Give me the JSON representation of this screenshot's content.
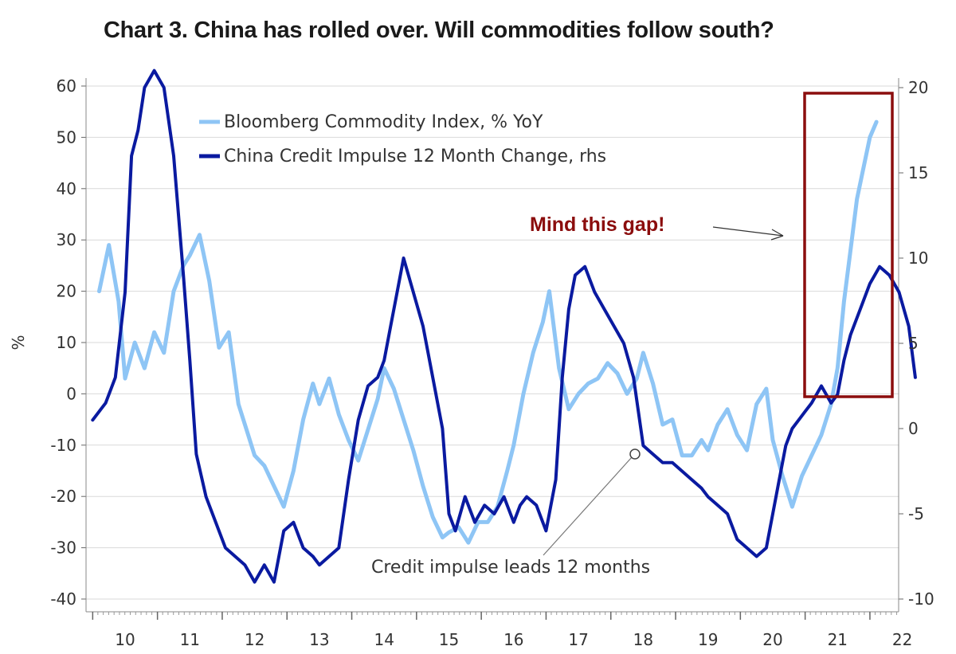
{
  "chart_data": {
    "type": "line",
    "title": "Chart 3. China has rolled over. Will commodities follow south?",
    "ylabel": "%",
    "y2label": "",
    "ylim": [
      -40,
      60
    ],
    "y2lim": [
      -10,
      20
    ],
    "yticks": [
      60,
      50,
      40,
      30,
      20,
      10,
      0,
      -10,
      -20,
      -30,
      -40
    ],
    "y2ticks": [
      20,
      15,
      10,
      5,
      0,
      -5,
      -10
    ],
    "xticks": [
      "10",
      "11",
      "12",
      "13",
      "14",
      "15",
      "16",
      "17",
      "18",
      "19",
      "20",
      "21",
      "22"
    ],
    "xlim": [
      2009.5,
      2022.3
    ],
    "grid": true,
    "legend_position": "top-left",
    "series": [
      {
        "name": "Bloomberg Commodity Index, % YoY",
        "axis": "left",
        "color": "#8ec5f5",
        "x": [
          2009.6,
          2009.75,
          2009.9,
          2010.0,
          2010.15,
          2010.3,
          2010.45,
          2010.6,
          2010.75,
          2010.9,
          2011.0,
          2011.15,
          2011.3,
          2011.45,
          2011.6,
          2011.75,
          2011.9,
          2012.0,
          2012.15,
          2012.3,
          2012.45,
          2012.6,
          2012.75,
          2012.9,
          2013.0,
          2013.15,
          2013.3,
          2013.45,
          2013.6,
          2013.75,
          2013.9,
          2014.0,
          2014.15,
          2014.3,
          2014.45,
          2014.6,
          2014.75,
          2014.9,
          2015.0,
          2015.15,
          2015.3,
          2015.45,
          2015.6,
          2015.75,
          2015.9,
          2016.0,
          2016.15,
          2016.3,
          2016.45,
          2016.55,
          2016.7,
          2016.85,
          2017.0,
          2017.15,
          2017.3,
          2017.45,
          2017.6,
          2017.75,
          2017.9,
          2018.0,
          2018.15,
          2018.3,
          2018.45,
          2018.6,
          2018.75,
          2018.9,
          2019.0,
          2019.15,
          2019.3,
          2019.45,
          2019.6,
          2019.75,
          2019.9,
          2020.0,
          2020.15,
          2020.3,
          2020.45,
          2020.6,
          2020.75,
          2020.9,
          2021.0,
          2021.1,
          2021.2,
          2021.3,
          2021.4,
          2021.5,
          2021.6
        ],
        "values": [
          20,
          29,
          18,
          3,
          10,
          5,
          12,
          8,
          20,
          25,
          27,
          31,
          22,
          9,
          12,
          -2,
          -8,
          -12,
          -14,
          -18,
          -22,
          -15,
          -5,
          2,
          -2,
          3,
          -4,
          -9,
          -13,
          -7,
          -1,
          5,
          1,
          -5,
          -11,
          -18,
          -24,
          -28,
          -27,
          -26,
          -29,
          -25,
          -25,
          -22,
          -15,
          -10,
          0,
          8,
          14,
          20,
          5,
          -3,
          0,
          2,
          3,
          6,
          4,
          0,
          3,
          8,
          2,
          -6,
          -5,
          -12,
          -12,
          -9,
          -11,
          -6,
          -3,
          -8,
          -11,
          -2,
          1,
          -9,
          -16,
          -22,
          -16,
          -12,
          -8,
          -2,
          5,
          18,
          28,
          38,
          44,
          50,
          53
        ]
      },
      {
        "name": "China Credit Impulse 12 Month Change, rhs",
        "axis": "right",
        "color": "#0a1aa0",
        "x": [
          2009.5,
          2009.7,
          2009.85,
          2010.0,
          2010.1,
          2010.2,
          2010.3,
          2010.45,
          2010.6,
          2010.75,
          2010.9,
          2011.0,
          2011.1,
          2011.25,
          2011.4,
          2011.55,
          2011.7,
          2011.85,
          2012.0,
          2012.15,
          2012.3,
          2012.45,
          2012.6,
          2012.75,
          2012.9,
          2013.0,
          2013.15,
          2013.3,
          2013.45,
          2013.6,
          2013.75,
          2013.9,
          2014.0,
          2014.1,
          2014.2,
          2014.3,
          2014.45,
          2014.6,
          2014.75,
          2014.9,
          2015.0,
          2015.1,
          2015.25,
          2015.4,
          2015.55,
          2015.7,
          2015.85,
          2016.0,
          2016.1,
          2016.2,
          2016.35,
          2016.5,
          2016.65,
          2016.75,
          2016.85,
          2016.95,
          2017.1,
          2017.25,
          2017.4,
          2017.55,
          2017.7,
          2017.85,
          2018.0,
          2018.15,
          2018.3,
          2018.45,
          2018.6,
          2018.75,
          2018.9,
          2019.0,
          2019.15,
          2019.3,
          2019.45,
          2019.6,
          2019.75,
          2019.9,
          2020.0,
          2020.1,
          2020.2,
          2020.3,
          2020.4,
          2020.5,
          2020.6,
          2020.75,
          2020.9,
          2021.0,
          2021.1,
          2021.2,
          2021.35,
          2021.5,
          2021.65,
          2021.8,
          2021.95,
          2022.1,
          2022.2
        ],
        "values": [
          0.5,
          1.5,
          3,
          8,
          16,
          17.5,
          20,
          21,
          20,
          16,
          9,
          4,
          -1.5,
          -4,
          -5.5,
          -7,
          -7.5,
          -8,
          -9,
          -8,
          -9,
          -6,
          -5.5,
          -7,
          -7.5,
          -8,
          -7.5,
          -7,
          -3,
          0.5,
          2.5,
          3,
          4,
          6,
          8,
          10,
          8,
          6,
          3,
          0,
          -5,
          -6,
          -4,
          -5.5,
          -4.5,
          -5,
          -4,
          -5.5,
          -4.5,
          -4,
          -4.5,
          -6,
          -3,
          3,
          7,
          9,
          9.5,
          8,
          7,
          6,
          5,
          3,
          -1,
          -1.5,
          -2,
          -2,
          -2.5,
          -3,
          -3.5,
          -4,
          -4.5,
          -5,
          -6.5,
          -7,
          -7.5,
          -7,
          -5,
          -3,
          -1,
          0,
          0.5,
          1,
          1.5,
          2.5,
          1.5,
          2,
          4,
          5.5,
          7,
          8.5,
          9.5,
          9,
          8,
          6,
          3
        ]
      }
    ],
    "annotations": [
      {
        "text": "Mind this gap!",
        "color": "#8b0d0d"
      },
      {
        "text": "Credit impulse leads 12 months"
      }
    ],
    "highlight_box_color": "#8b0d0d"
  }
}
